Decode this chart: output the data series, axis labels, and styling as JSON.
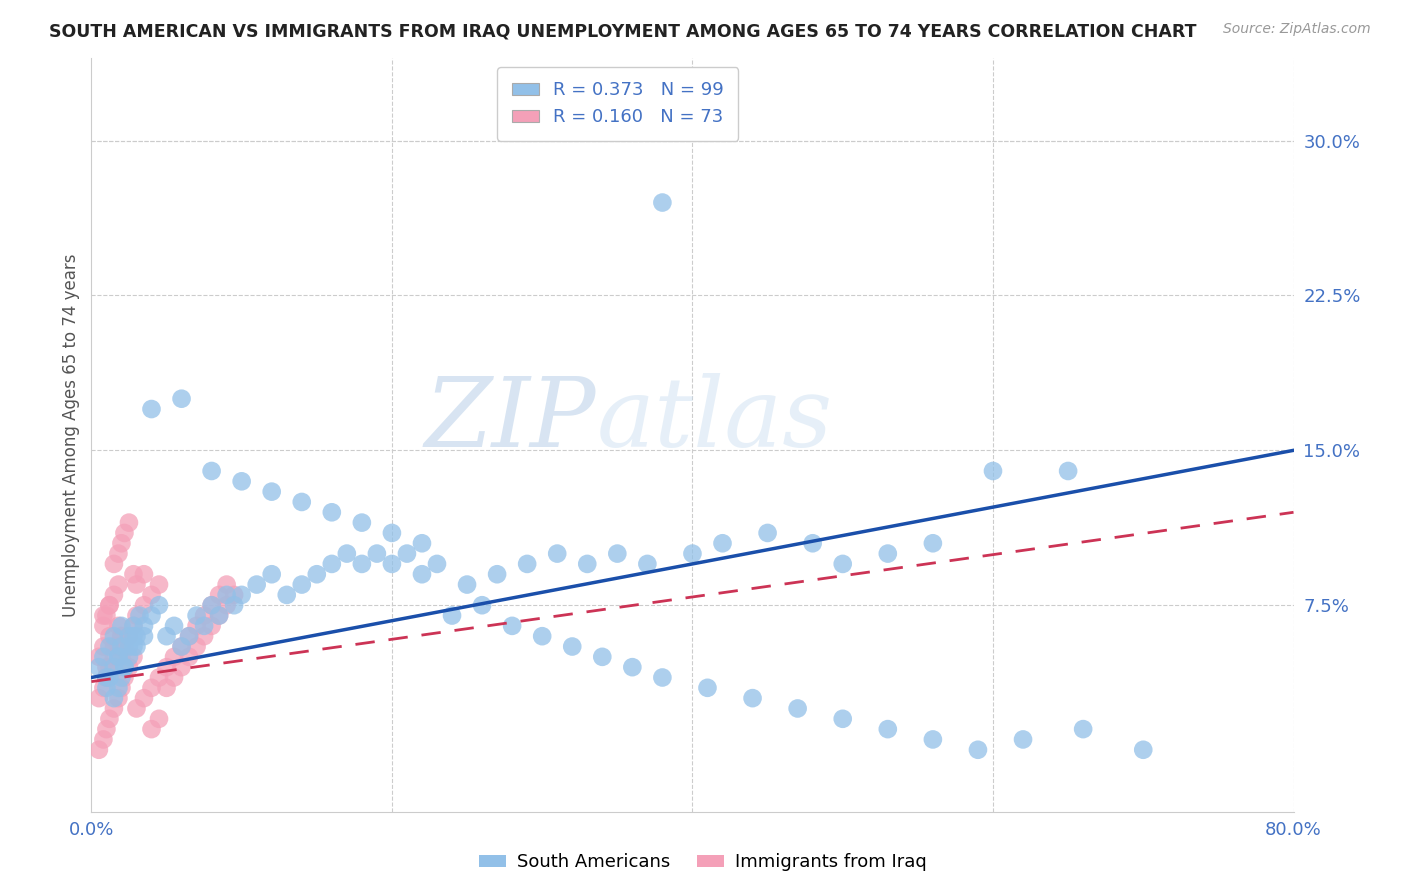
{
  "title": "SOUTH AMERICAN VS IMMIGRANTS FROM IRAQ UNEMPLOYMENT AMONG AGES 65 TO 74 YEARS CORRELATION CHART",
  "source": "Source: ZipAtlas.com",
  "ylabel": "Unemployment Among Ages 65 to 74 years",
  "xlim": [
    0.0,
    0.8
  ],
  "ylim": [
    -0.025,
    0.34
  ],
  "right_yticks": [
    0.0,
    0.075,
    0.15,
    0.225,
    0.3
  ],
  "right_ytick_labels": [
    "",
    "7.5%",
    "15.0%",
    "22.5%",
    "30.0%"
  ],
  "xtick_positions": [
    0.0,
    0.2,
    0.4,
    0.6,
    0.8
  ],
  "xtick_labels": [
    "0.0%",
    "",
    "",
    "",
    "80.0%"
  ],
  "blue_color": "#92c0e8",
  "pink_color": "#f4a0b8",
  "blue_line_color": "#1a4faa",
  "pink_line_color": "#cc3355",
  "legend_blue_R": "R = 0.373",
  "legend_blue_N": "N = 99",
  "legend_pink_R": "R = 0.160",
  "legend_pink_N": "N = 73",
  "watermark": "ZIPatlas",
  "blue_trend": [
    0.0,
    0.04,
    0.8,
    0.15
  ],
  "pink_trend": [
    0.0,
    0.038,
    0.8,
    0.12
  ],
  "blue_scatter_x": [
    0.005,
    0.008,
    0.01,
    0.012,
    0.015,
    0.018,
    0.02,
    0.022,
    0.025,
    0.028,
    0.01,
    0.012,
    0.015,
    0.018,
    0.02,
    0.025,
    0.028,
    0.03,
    0.032,
    0.035,
    0.015,
    0.018,
    0.02,
    0.022,
    0.025,
    0.028,
    0.03,
    0.035,
    0.04,
    0.045,
    0.05,
    0.055,
    0.06,
    0.065,
    0.07,
    0.075,
    0.08,
    0.085,
    0.09,
    0.095,
    0.1,
    0.11,
    0.12,
    0.13,
    0.14,
    0.15,
    0.16,
    0.17,
    0.18,
    0.19,
    0.2,
    0.21,
    0.22,
    0.23,
    0.25,
    0.27,
    0.29,
    0.31,
    0.33,
    0.35,
    0.37,
    0.4,
    0.42,
    0.45,
    0.48,
    0.5,
    0.53,
    0.56,
    0.6,
    0.65,
    0.04,
    0.06,
    0.08,
    0.1,
    0.12,
    0.14,
    0.16,
    0.18,
    0.2,
    0.22,
    0.24,
    0.26,
    0.28,
    0.3,
    0.32,
    0.34,
    0.36,
    0.38,
    0.41,
    0.44,
    0.47,
    0.5,
    0.53,
    0.56,
    0.59,
    0.62,
    0.66,
    0.7,
    0.38
  ],
  "blue_scatter_y": [
    0.045,
    0.05,
    0.04,
    0.055,
    0.06,
    0.05,
    0.065,
    0.045,
    0.055,
    0.06,
    0.035,
    0.04,
    0.045,
    0.05,
    0.055,
    0.06,
    0.065,
    0.055,
    0.07,
    0.06,
    0.03,
    0.035,
    0.04,
    0.045,
    0.05,
    0.055,
    0.06,
    0.065,
    0.07,
    0.075,
    0.06,
    0.065,
    0.055,
    0.06,
    0.07,
    0.065,
    0.075,
    0.07,
    0.08,
    0.075,
    0.08,
    0.085,
    0.09,
    0.08,
    0.085,
    0.09,
    0.095,
    0.1,
    0.095,
    0.1,
    0.095,
    0.1,
    0.09,
    0.095,
    0.085,
    0.09,
    0.095,
    0.1,
    0.095,
    0.1,
    0.095,
    0.1,
    0.105,
    0.11,
    0.105,
    0.095,
    0.1,
    0.105,
    0.14,
    0.14,
    0.17,
    0.175,
    0.14,
    0.135,
    0.13,
    0.125,
    0.12,
    0.115,
    0.11,
    0.105,
    0.07,
    0.075,
    0.065,
    0.06,
    0.055,
    0.05,
    0.045,
    0.04,
    0.035,
    0.03,
    0.025,
    0.02,
    0.015,
    0.01,
    0.005,
    0.01,
    0.015,
    0.005,
    0.27
  ],
  "pink_scatter_x": [
    0.005,
    0.008,
    0.01,
    0.012,
    0.015,
    0.018,
    0.02,
    0.008,
    0.01,
    0.012,
    0.015,
    0.018,
    0.02,
    0.022,
    0.025,
    0.028,
    0.03,
    0.035,
    0.04,
    0.045,
    0.05,
    0.055,
    0.06,
    0.065,
    0.07,
    0.075,
    0.08,
    0.085,
    0.09,
    0.095,
    0.005,
    0.008,
    0.01,
    0.012,
    0.015,
    0.018,
    0.02,
    0.008,
    0.01,
    0.012,
    0.015,
    0.018,
    0.02,
    0.022,
    0.025,
    0.028,
    0.03,
    0.035,
    0.04,
    0.045,
    0.005,
    0.008,
    0.01,
    0.012,
    0.015,
    0.018,
    0.02,
    0.022,
    0.025,
    0.028,
    0.03,
    0.035,
    0.04,
    0.045,
    0.05,
    0.055,
    0.06,
    0.065,
    0.07,
    0.075,
    0.08,
    0.085,
    0.09
  ],
  "pink_scatter_y": [
    0.05,
    0.055,
    0.045,
    0.06,
    0.055,
    0.065,
    0.06,
    0.07,
    0.04,
    0.075,
    0.08,
    0.085,
    0.05,
    0.055,
    0.06,
    0.065,
    0.07,
    0.075,
    0.08,
    0.085,
    0.035,
    0.04,
    0.045,
    0.05,
    0.055,
    0.06,
    0.065,
    0.07,
    0.075,
    0.08,
    0.03,
    0.035,
    0.04,
    0.045,
    0.05,
    0.055,
    0.06,
    0.065,
    0.07,
    0.075,
    0.095,
    0.1,
    0.105,
    0.11,
    0.115,
    0.09,
    0.085,
    0.09,
    0.015,
    0.02,
    0.005,
    0.01,
    0.015,
    0.02,
    0.025,
    0.03,
    0.035,
    0.04,
    0.045,
    0.05,
    0.025,
    0.03,
    0.035,
    0.04,
    0.045,
    0.05,
    0.055,
    0.06,
    0.065,
    0.07,
    0.075,
    0.08,
    0.085
  ]
}
